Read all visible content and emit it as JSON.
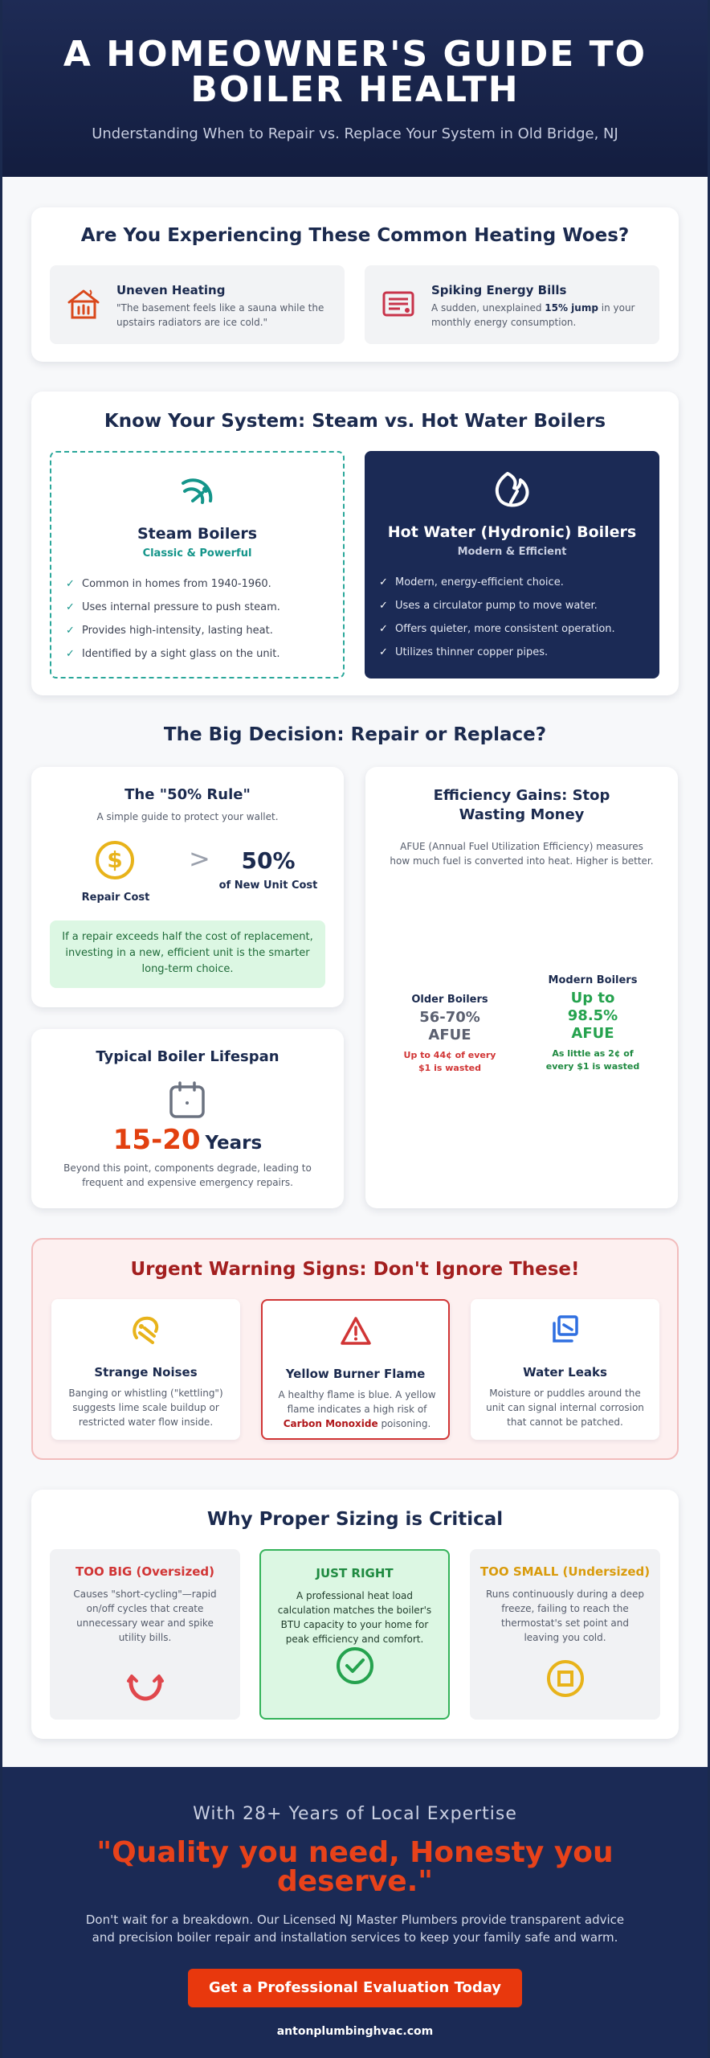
{
  "hero": {
    "title": "A HOMEOWNER'S GUIDE TO BOILER HEALTH",
    "subtitle": "Understanding When to Repair vs. Replace Your System in Old Bridge, NJ"
  },
  "woes": {
    "title": "Are You Experiencing These Common Heating Woes?",
    "items": [
      {
        "icon": "house-heat-icon",
        "title": "Uneven Heating",
        "text": "\"The basement feels like a sauna while the upstairs radiators are ice cold.\""
      },
      {
        "icon": "bill-icon",
        "title": "Spiking Energy Bills",
        "text_pre": "A sudden, unexplained ",
        "text_bold": "15% jump",
        "text_post": " in your monthly energy consumption."
      }
    ]
  },
  "system": {
    "title": "Know Your System: Steam vs. Hot Water Boilers",
    "steam": {
      "icon": "steam-icon",
      "title": "Steam Boilers",
      "subtitle": "Classic & Powerful",
      "check": "✓",
      "points": [
        "Common in homes from 1940-1960.",
        "Uses internal pressure to push steam.",
        "Provides high-intensity, lasting heat.",
        "Identified by a sight glass on the unit."
      ]
    },
    "hot": {
      "icon": "flame-icon",
      "title": "Hot Water (Hydronic) Boilers",
      "subtitle": "Modern & Efficient",
      "check": "✓",
      "points": [
        "Modern, energy-efficient choice.",
        "Uses a circulator pump to move water.",
        "Offers quieter, more consistent operation.",
        "Utilizes thinner copper pipes."
      ]
    }
  },
  "decision": {
    "title": "The Big Decision: Repair or Replace?",
    "rule": {
      "title": "The \"50% Rule\"",
      "subtitle": "A simple guide to protect your wallet.",
      "coin": "$",
      "repair_label": "Repair Cost",
      "gt": ">",
      "percent": "50%",
      "percent_label": "of New Unit Cost",
      "note": "If a repair exceeds half the cost of replacement, investing in a new, efficient unit is the smarter long-term choice."
    },
    "lifespan": {
      "title": "Typical Boiler Lifespan",
      "range": "15-20",
      "unit": "Years",
      "text": "Beyond this point, components degrade, leading to frequent and expensive emergency repairs."
    },
    "efficiency": {
      "title": "Efficiency Gains: Stop Wasting Money",
      "desc": "AFUE (Annual Fuel Utilization Efficiency) measures how much fuel is converted into heat. Higher is better.",
      "old": {
        "label": "Older Boilers",
        "value_1": "56-70%",
        "value_2": "AFUE",
        "note": "Up to 44¢ of every $1 is wasted"
      },
      "new": {
        "label": "Modern Boilers",
        "value_1": "Up to",
        "value_2": "98.5%",
        "value_3": "AFUE",
        "note": "As little as 2¢ of every $1 is wasted"
      }
    }
  },
  "warning": {
    "title": "Urgent Warning Signs: Don't Ignore These!",
    "items": [
      {
        "icon": "noise-icon",
        "title": "Strange Noises",
        "text": "Banging or whistling (\"kettling\") suggests lime scale buildup or restricted water flow inside."
      },
      {
        "icon": "warning-triangle-icon",
        "title": "Yellow Burner Flame",
        "text_pre": "A healthy flame is blue. A yellow flame indicates a high risk of ",
        "text_bold": "Carbon Monoxide",
        "text_post": " poisoning."
      },
      {
        "icon": "water-leak-icon",
        "title": "Water Leaks",
        "text": "Moisture or puddles around the unit can signal internal corrosion that cannot be patched."
      }
    ]
  },
  "sizing": {
    "title": "Why Proper Sizing is Critical",
    "items": [
      {
        "title": "TOO BIG (Oversized)",
        "text": "Causes \"short-cycling\"—rapid on/off cycles that create unnecessary wear and spike utility bills.",
        "icon": "cycle-icon",
        "color": "#d13535"
      },
      {
        "title": "JUST RIGHT",
        "text": "A professional heat load calculation matches the boiler's BTU capacity to your home for peak efficiency and comfort.",
        "icon": "check-circle-icon",
        "color": "#1f8a41"
      },
      {
        "title": "TOO SMALL (Undersized)",
        "text": "Runs continuously during a deep freeze, failing to reach the thermostat's set point and leaving you cold.",
        "icon": "square-circle-icon",
        "color": "#d99b0c"
      }
    ]
  },
  "cta": {
    "kicker": "With 28+ Years of Local Expertise",
    "quote": "\"Quality you need, Honesty you deserve.\"",
    "body": "Don't wait for a breakdown. Our Licensed NJ Master Plumbers provide transparent advice and precision boiler repair and installation services to keep your family safe and warm.",
    "button": "Get a Professional Evaluation Today",
    "website": "antonplumbinghvac.com"
  },
  "colors": {
    "navy": "#1b2a55",
    "teal": "#14958a",
    "orange": "#e8421a",
    "red": "#d13535",
    "green": "#25a24e",
    "gold": "#e8b31a"
  }
}
